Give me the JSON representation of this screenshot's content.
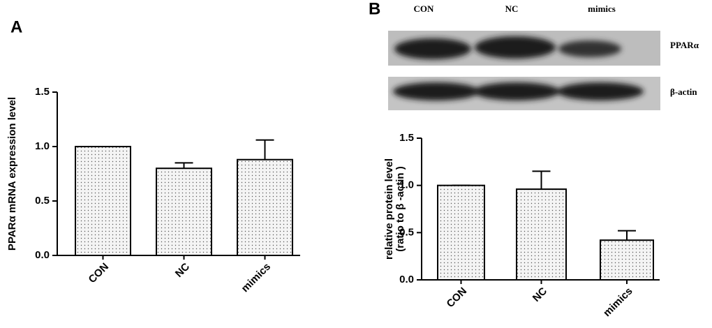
{
  "chart_data": [
    {
      "type": "bar",
      "panel_label": "A",
      "ylabel": [
        "PPARα mRNA expression level"
      ],
      "categories": [
        "CON",
        "NC",
        "mimics"
      ],
      "values": [
        1.0,
        0.8,
        0.88
      ],
      "errors": [
        0,
        0.05,
        0.18
      ],
      "color": "#f4f4f4",
      "ylim": [
        0,
        1.5
      ],
      "yticks": [
        {
          "value": 0,
          "label": "0.0"
        },
        0.5,
        {
          "value": 1,
          "label": "1.0"
        },
        1.5
      ]
    },
    {
      "type": "bar",
      "panel_label": "B",
      "ylabel": [
        "relative protein level",
        "(ratio to β -actin )"
      ],
      "categories": [
        "CON",
        "NC",
        "mimics"
      ],
      "values": [
        1.0,
        0.96,
        0.42
      ],
      "errors": [
        0,
        0.19,
        0.1
      ],
      "color": "#f4f4f4",
      "ylim": [
        0,
        1.5
      ],
      "yticks": [
        {
          "value": 0,
          "label": "0.0"
        },
        0.5,
        {
          "value": 1,
          "label": "1.0"
        },
        1.5
      ]
    }
  ],
  "blot": {
    "lanes": [
      "CON",
      "NC",
      "mimics"
    ],
    "bands": [
      "PPARα",
      "β-actin"
    ]
  }
}
